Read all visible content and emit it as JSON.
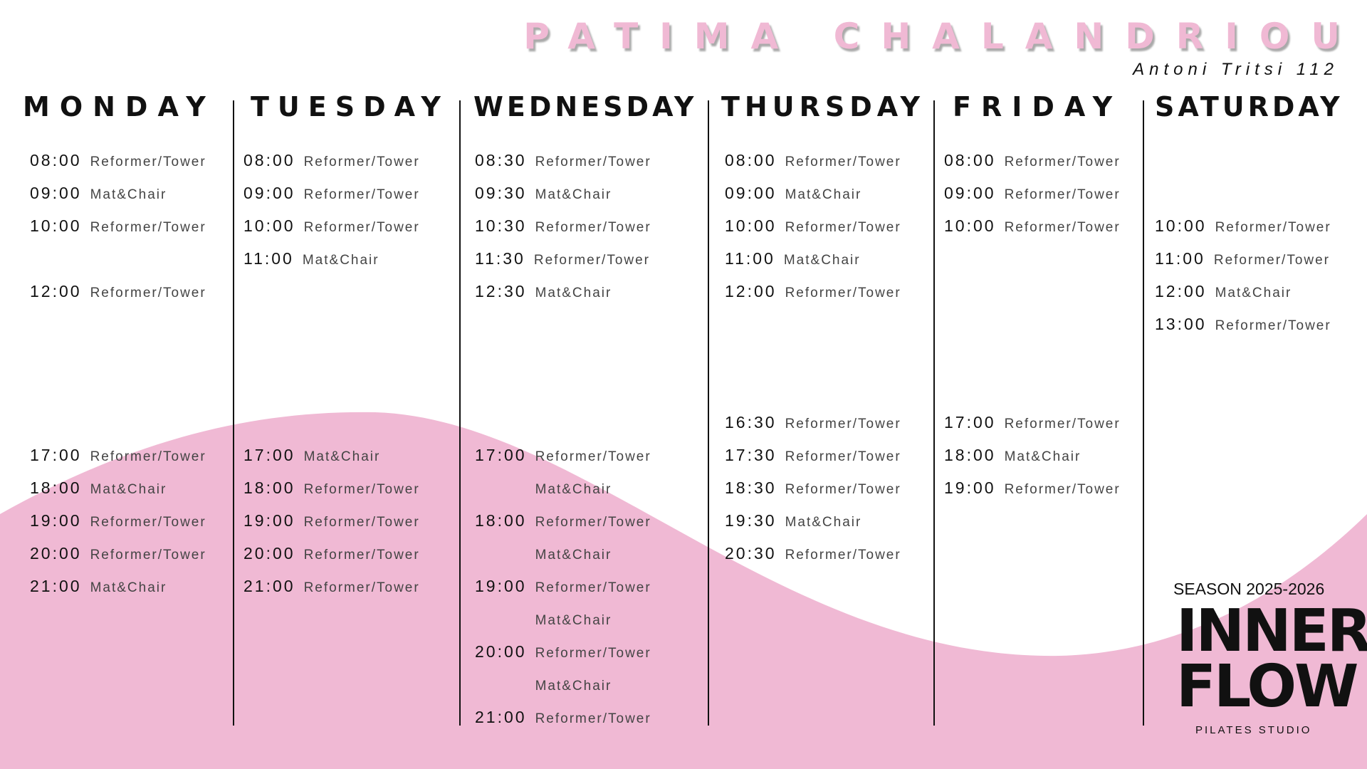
{
  "header": {
    "name": "PATIMA CHALANDRIOU",
    "address": "Antoni Tritsi 112"
  },
  "colors": {
    "pink": "#f0b9d4",
    "text": "#111111"
  },
  "days": [
    {
      "name": "MONDAY",
      "entries": [
        {
          "time": "08:00",
          "class": "Reformer/Tower"
        },
        {
          "time": "09:00",
          "class": "Mat&Chair"
        },
        {
          "time": "10:00",
          "class": "Reformer/Tower"
        },
        {
          "time": "",
          "class": ""
        },
        {
          "time": "12:00",
          "class": "Reformer/Tower"
        },
        {
          "time": "",
          "class": ""
        },
        {
          "time": "",
          "class": ""
        },
        {
          "time": "",
          "class": ""
        },
        {
          "time": "",
          "class": ""
        },
        {
          "time": "17:00",
          "class": "Reformer/Tower"
        },
        {
          "time": "18:00",
          "class": "Mat&Chair"
        },
        {
          "time": "19:00",
          "class": "Reformer/Tower"
        },
        {
          "time": "20:00",
          "class": "Reformer/Tower"
        },
        {
          "time": "21:00",
          "class": "Mat&Chair"
        }
      ]
    },
    {
      "name": "TUESDAY",
      "entries": [
        {
          "time": "08:00",
          "class": "Reformer/Tower"
        },
        {
          "time": "09:00",
          "class": "Reformer/Tower"
        },
        {
          "time": "10:00",
          "class": "Reformer/Tower"
        },
        {
          "time": "11:00",
          "class": "Mat&Chair"
        },
        {
          "time": "",
          "class": ""
        },
        {
          "time": "",
          "class": ""
        },
        {
          "time": "",
          "class": ""
        },
        {
          "time": "",
          "class": ""
        },
        {
          "time": "",
          "class": ""
        },
        {
          "time": "17:00",
          "class": "Mat&Chair"
        },
        {
          "time": "18:00",
          "class": "Reformer/Tower"
        },
        {
          "time": "19:00",
          "class": "Reformer/Tower"
        },
        {
          "time": "20:00",
          "class": "Reformer/Tower"
        },
        {
          "time": "21:00",
          "class": "Reformer/Tower"
        }
      ]
    },
    {
      "name": "WEDNESDAY",
      "entries": [
        {
          "time": "08:30",
          "class": "Reformer/Tower"
        },
        {
          "time": "09:30",
          "class": "Mat&Chair"
        },
        {
          "time": "10:30",
          "class": "Reformer/Tower"
        },
        {
          "time": "11:30",
          "class": "Reformer/Tower"
        },
        {
          "time": "12:30",
          "class": "Mat&Chair"
        },
        {
          "time": "",
          "class": ""
        },
        {
          "time": "",
          "class": ""
        },
        {
          "time": "",
          "class": ""
        },
        {
          "time": "",
          "class": ""
        },
        {
          "time": "17:00",
          "class": "Reformer/Tower"
        },
        {
          "time": "",
          "class": "Mat&Chair"
        },
        {
          "time": "18:00",
          "class": "Reformer/Tower"
        },
        {
          "time": "",
          "class": "Mat&Chair"
        },
        {
          "time": "19:00",
          "class": "Reformer/Tower"
        },
        {
          "time": "",
          "class": "Mat&Chair"
        },
        {
          "time": "20:00",
          "class": "Reformer/Tower"
        },
        {
          "time": "",
          "class": "Mat&Chair"
        },
        {
          "time": "21:00",
          "class": "Reformer/Tower"
        }
      ]
    },
    {
      "name": "THURSDAY",
      "entries": [
        {
          "time": "08:00",
          "class": "Reformer/Tower"
        },
        {
          "time": "09:00",
          "class": "Mat&Chair"
        },
        {
          "time": "10:00",
          "class": "Reformer/Tower"
        },
        {
          "time": "11:00",
          "class": "Mat&Chair"
        },
        {
          "time": "12:00",
          "class": "Reformer/Tower"
        },
        {
          "time": "",
          "class": ""
        },
        {
          "time": "",
          "class": ""
        },
        {
          "time": "",
          "class": ""
        },
        {
          "time": "16:30",
          "class": "Reformer/Tower"
        },
        {
          "time": "17:30",
          "class": "Reformer/Tower"
        },
        {
          "time": "18:30",
          "class": "Reformer/Tower"
        },
        {
          "time": "19:30",
          "class": "Mat&Chair"
        },
        {
          "time": "20:30",
          "class": "Reformer/Tower"
        }
      ]
    },
    {
      "name": "FRIDAY",
      "entries": [
        {
          "time": "08:00",
          "class": "Reformer/Tower"
        },
        {
          "time": "09:00",
          "class": "Reformer/Tower"
        },
        {
          "time": "10:00",
          "class": "Reformer/Tower"
        },
        {
          "time": "",
          "class": ""
        },
        {
          "time": "",
          "class": ""
        },
        {
          "time": "",
          "class": ""
        },
        {
          "time": "",
          "class": ""
        },
        {
          "time": "",
          "class": ""
        },
        {
          "time": "17:00",
          "class": "Reformer/Tower"
        },
        {
          "time": "18:00",
          "class": "Mat&Chair"
        },
        {
          "time": "19:00",
          "class": "Reformer/Tower"
        }
      ]
    },
    {
      "name": "SATURDAY",
      "entries": [
        {
          "time": "",
          "class": ""
        },
        {
          "time": "",
          "class": ""
        },
        {
          "time": "10:00",
          "class": "Reformer/Tower"
        },
        {
          "time": "11:00",
          "class": "Reformer/Tower"
        },
        {
          "time": "12:00",
          "class": "Mat&Chair"
        },
        {
          "time": "13:00",
          "class": "Reformer/Tower"
        }
      ]
    }
  ],
  "branding": {
    "season": "SEASON 2025-2026",
    "logo_line1": "INNER",
    "logo_line2": "FLOW",
    "tagline": "PILATES STUDIO"
  }
}
